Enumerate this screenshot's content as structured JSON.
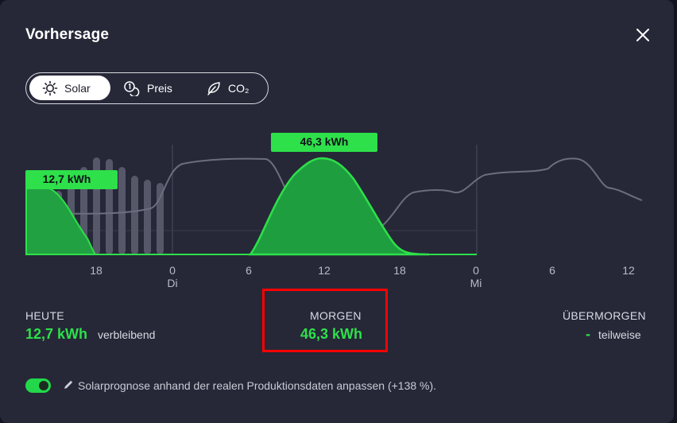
{
  "dialog": {
    "title": "Vorhersage",
    "close_icon": "close-icon"
  },
  "tabs": [
    {
      "label": "Solar",
      "icon": "sun-icon",
      "active": true
    },
    {
      "label": "Preis",
      "icon": "coins-icon",
      "active": false
    },
    {
      "label": "CO₂",
      "icon": "leaf-icon",
      "active": false
    }
  ],
  "chart_data": {
    "type": "area",
    "x_tick_labels": [
      "18",
      "0",
      "6",
      "12",
      "18",
      "0",
      "6",
      "12"
    ],
    "day_labels": [
      "Di",
      "Mi"
    ],
    "solar_series": {
      "name": "Solar",
      "color": "#2ee04a",
      "today_callout": "12,7 kWh",
      "tomorrow_callout": "46,3 kWh"
    },
    "price_series": {
      "name": "Preis",
      "color": "#6c6d7e"
    }
  },
  "summary": {
    "today": {
      "label": "HEUTE",
      "value": "12,7 kWh",
      "suffix": "verbleibend"
    },
    "tomorrow": {
      "label": "MORGEN",
      "value": "46,3 kWh"
    },
    "day_after": {
      "label": "ÜBERMORGEN",
      "value": "-",
      "suffix": "teilweise"
    }
  },
  "footer": {
    "toggle_on": true,
    "text": "Solarprognose anhand der realen Produktionsdaten anpassen (+138 %)."
  },
  "colors": {
    "accent": "#2ee04a",
    "background": "#262838"
  }
}
